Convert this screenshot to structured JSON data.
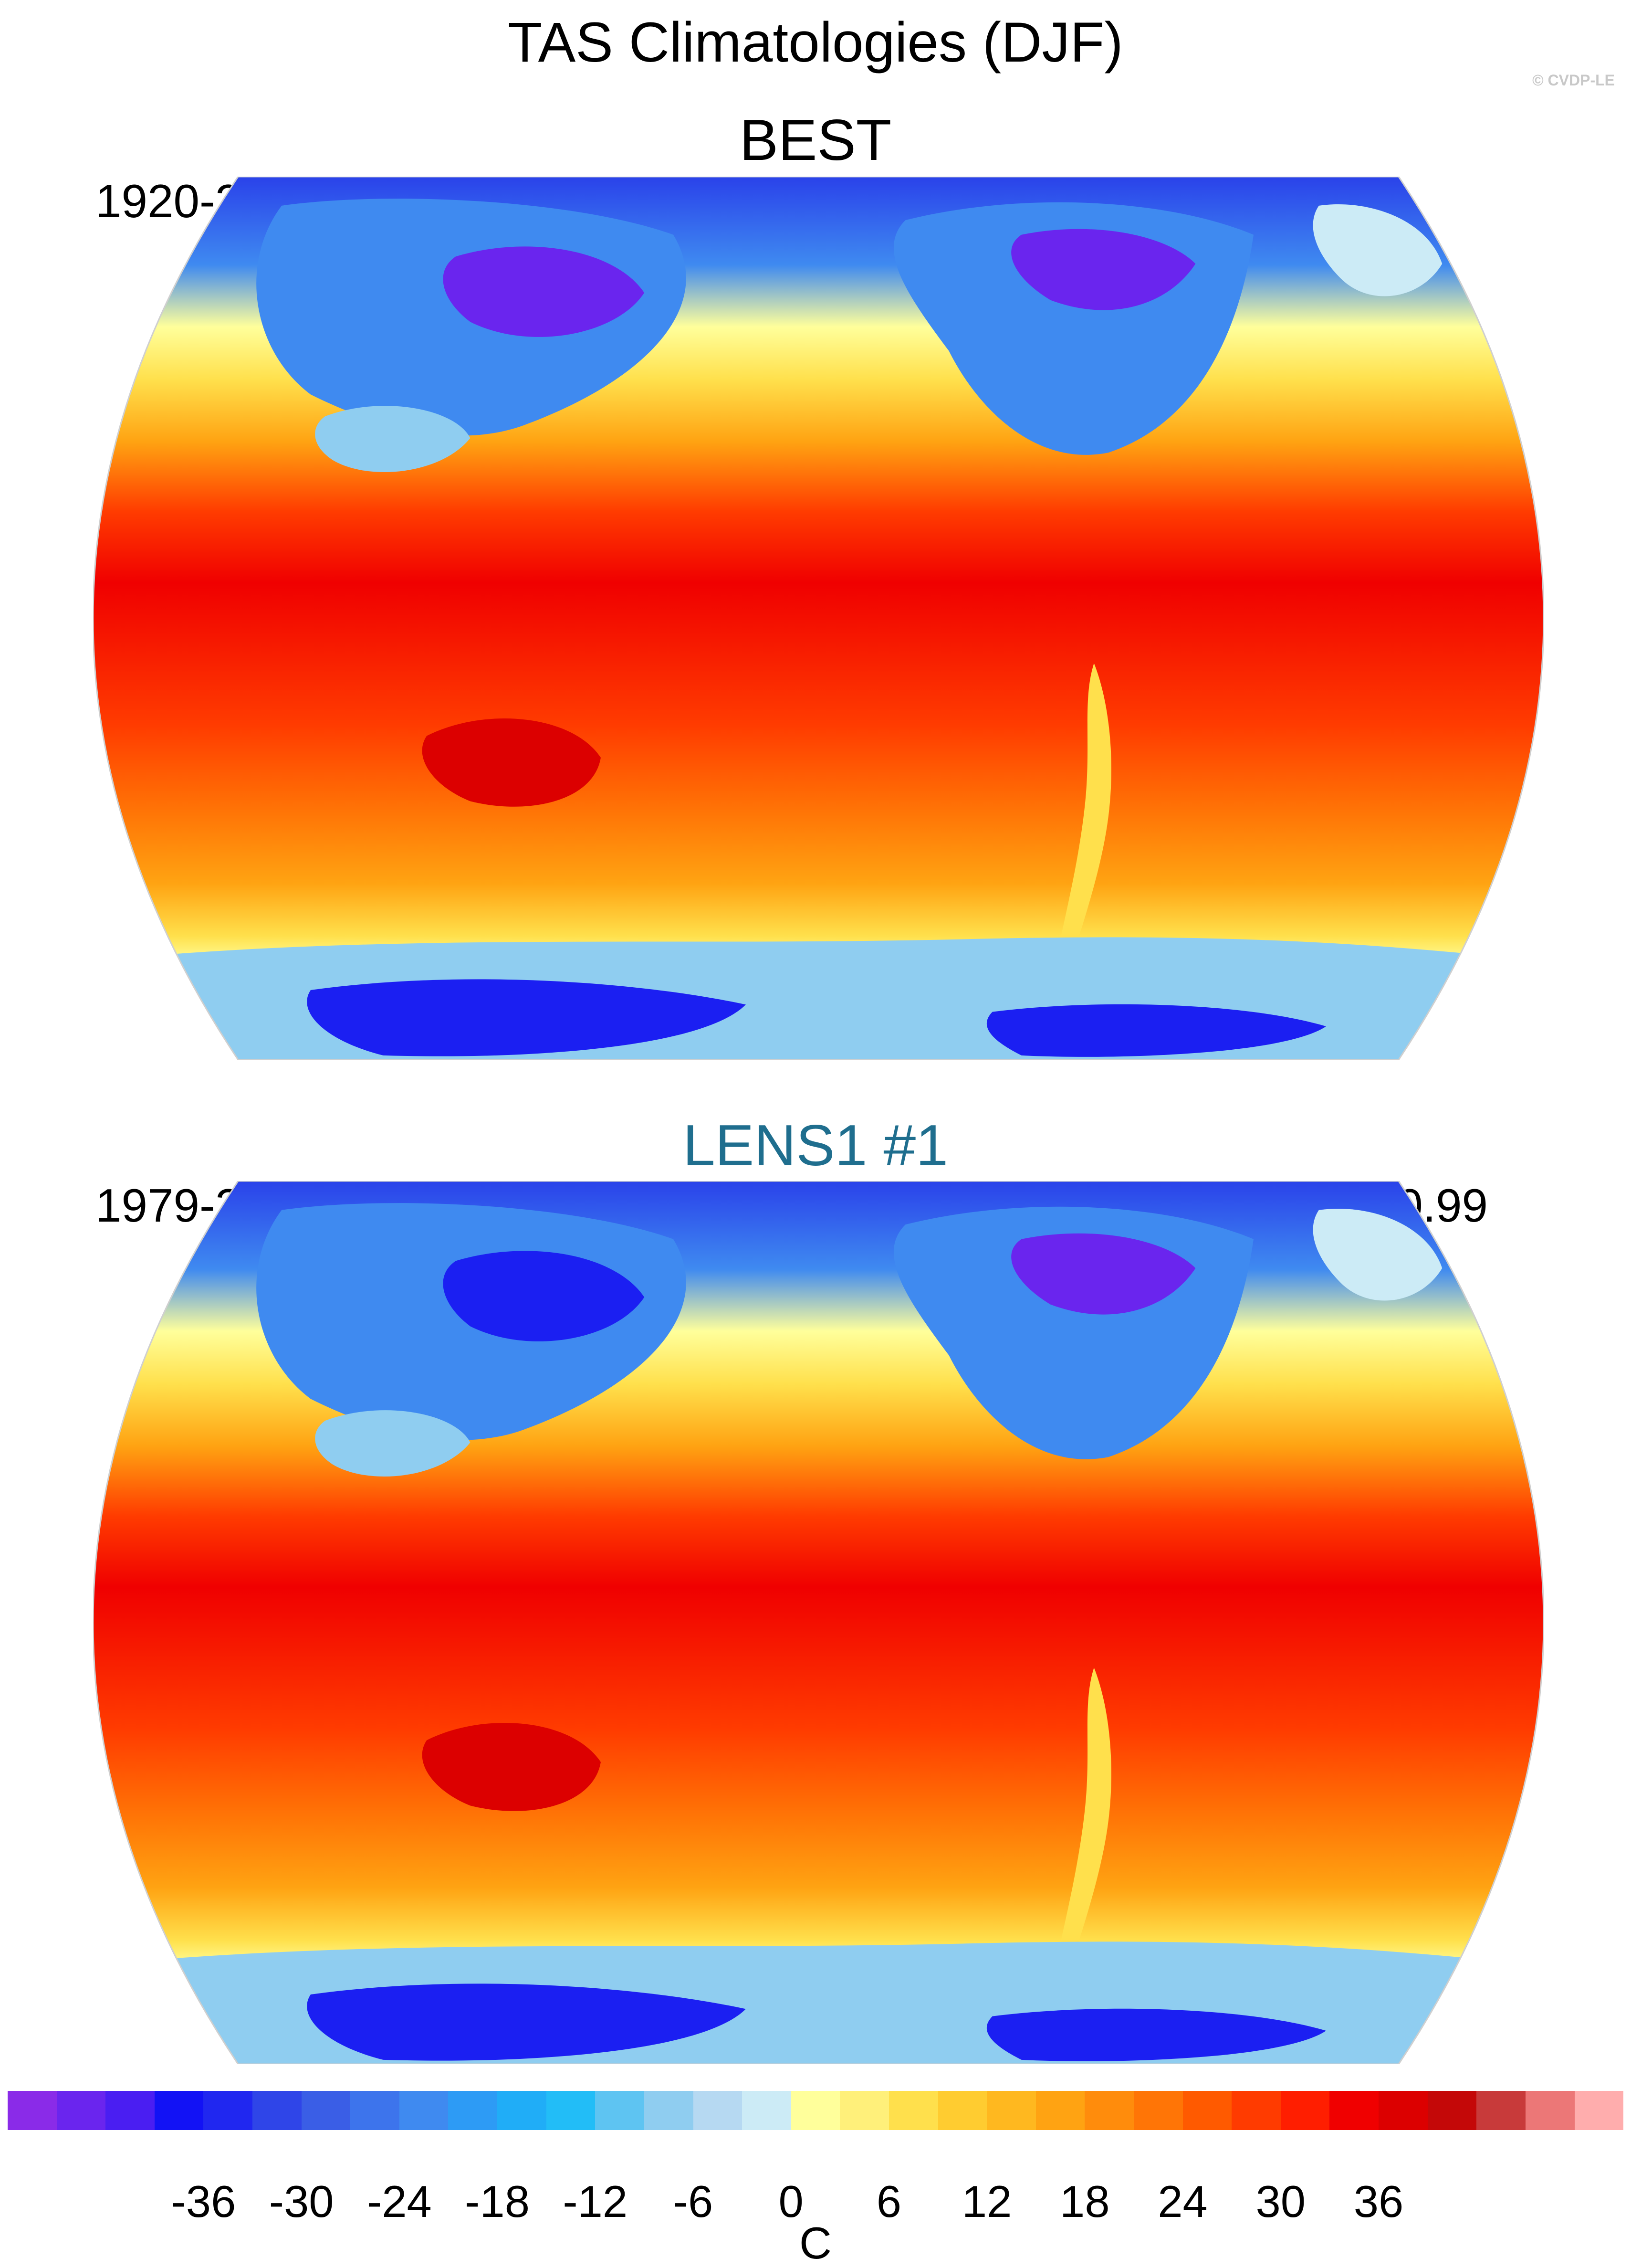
{
  "title": "TAS Climatologies (DJF)",
  "copyright": "© CVDP-LE",
  "panels": [
    {
      "title": "BEST",
      "period": "1920-2019",
      "corr": "",
      "title_color": "#000000"
    },
    {
      "title": "LENS1 #1",
      "period": "1979-2013",
      "corr": "r=0.99",
      "title_color": "#1f6e8e"
    }
  ],
  "colorbar": {
    "unit": "C",
    "tick_labels": [
      "-36",
      "-30",
      "-24",
      "-18",
      "-12",
      "-6",
      "0",
      "6",
      "12",
      "18",
      "24",
      "30",
      "36"
    ],
    "tick_values": [
      -36,
      -30,
      -24,
      -18,
      -12,
      -6,
      0,
      6,
      12,
      18,
      24,
      30,
      36
    ],
    "levels": [
      -42,
      -39,
      -36,
      -33,
      -30,
      -27,
      -24,
      -21,
      -18,
      -15,
      -12,
      -9,
      -6,
      -3,
      0,
      3,
      6,
      9,
      12,
      15,
      18,
      21,
      24,
      27,
      30,
      33,
      36,
      39,
      42
    ],
    "colors": [
      "#8a2be8",
      "#6a25ee",
      "#4a1ef2",
      "#1212f5",
      "#2027f0",
      "#2f45e8",
      "#3a5ee6",
      "#3d74ec",
      "#3f8af0",
      "#2d9bf5",
      "#20adf7",
      "#22bdf7",
      "#5ec4f2",
      "#8fcdf0",
      "#b6d9f2",
      "#ccebf6",
      "#ffff9b",
      "#fff07a",
      "#ffe04c",
      "#ffcc30",
      "#ffb81f",
      "#ffa312",
      "#ff8c0c",
      "#ff7506",
      "#ff5a00",
      "#ff3b00",
      "#ff1e00",
      "#f00000",
      "#dc0000",
      "#c40808",
      "#c83a3a",
      "#ec7777",
      "#ffadad"
    ]
  },
  "map_colors": {
    "polar_south_ice": "#1b1ff2",
    "polar_north": "#2a42ea",
    "violet": "#6a25ee",
    "cold_blue": "#3f8af0",
    "light_blue": "#8fcdf0",
    "pale_blue": "#ccebf6",
    "pale_yellow": "#ffff9b",
    "yellow": "#ffe04c",
    "orange": "#ffa312",
    "deep_orange": "#ff7506",
    "red_orange": "#ff3b00",
    "red": "#f00000",
    "coast": "#8b8b8b"
  }
}
